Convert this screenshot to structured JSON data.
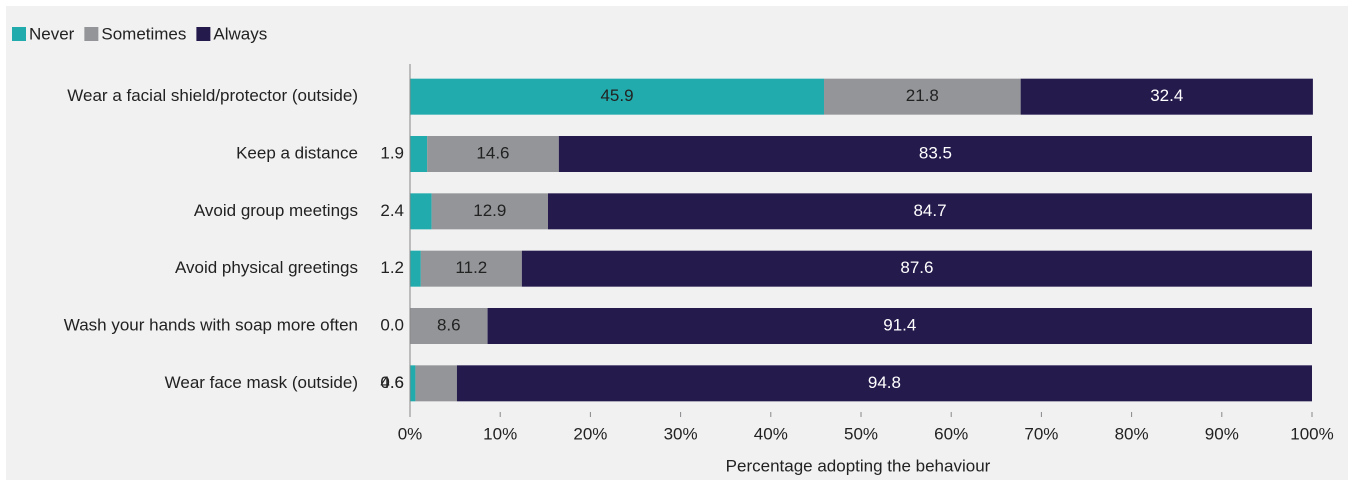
{
  "chart_data": {
    "type": "stacked_barh",
    "categories": [
      "Wear a facial shield/protector (outside)",
      "Keep a distance",
      "Avoid group meetings",
      "Avoid physical greetings",
      "Wash your hands with soap more often",
      "Wear face mask (outside)"
    ],
    "series": [
      {
        "name": "Never",
        "color": "#22abac",
        "values": [
          45.9,
          1.9,
          2.4,
          1.2,
          0,
          0.6
        ],
        "value_labels": [
          "45.9",
          "1.9",
          "2.4",
          "1.2",
          "0.0",
          "0.6"
        ]
      },
      {
        "name": "Sometimes",
        "color": "#939598",
        "values": [
          21.8,
          14.6,
          12.9,
          11.2,
          8.6,
          4.6
        ]
      },
      {
        "name": "Always",
        "color": "#251a4c",
        "values": [
          32.4,
          83.5,
          84.7,
          87.6,
          91.4,
          94.8
        ]
      }
    ],
    "xlabel": "Percentage adopting the behaviour",
    "xlim": [
      0,
      100
    ],
    "xticks": [
      {
        "value": 0,
        "label": "0%"
      },
      {
        "value": 10,
        "label": "10%"
      },
      {
        "value": 20,
        "label": "20%"
      },
      {
        "value": 30,
        "label": "30%"
      },
      {
        "value": 40,
        "label": "40%"
      },
      {
        "value": 50,
        "label": "50%"
      },
      {
        "value": 60,
        "label": "60%"
      },
      {
        "value": 70,
        "label": "70%"
      },
      {
        "value": 80,
        "label": "80%"
      },
      {
        "value": 90,
        "label": "90%"
      },
      {
        "value": 100,
        "label": "100%"
      }
    ],
    "legend": "top-left"
  }
}
